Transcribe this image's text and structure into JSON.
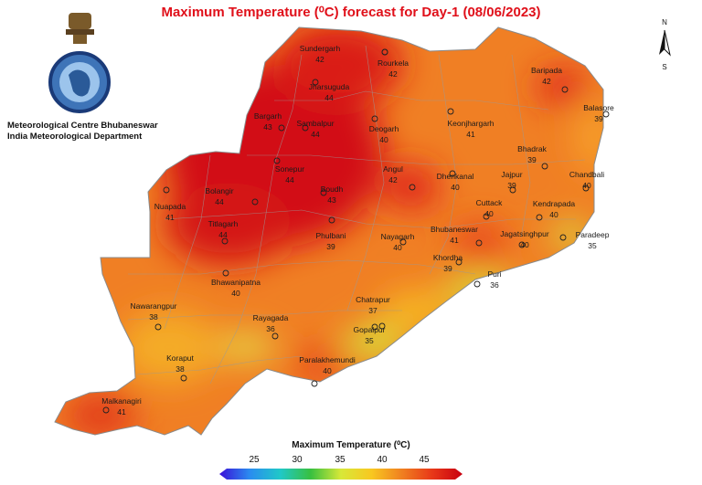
{
  "title": "Maximum Temperature (⁰C) forecast for Day-1 (08/06/2023)",
  "organization": {
    "line1": "Meteorological Centre Bhubaneswar",
    "line2": "India Meteorological Department",
    "emblem": "imd-emblem-icon"
  },
  "compass": {
    "north": "N",
    "south": "S"
  },
  "legend": {
    "title": "Maximum Temperature (⁰C)",
    "ticks": [
      "25",
      "30",
      "35",
      "40",
      "45"
    ],
    "colors": [
      "#3a10d8",
      "#2a8cf0",
      "#20c8c8",
      "#38c040",
      "#d8e838",
      "#f8c820",
      "#f08020",
      "#e83818",
      "#c80010"
    ]
  },
  "stations": [
    {
      "name": "Sundergarh",
      "temp": "42"
    },
    {
      "name": "Rourkela",
      "temp": "42"
    },
    {
      "name": "Jharsuguda",
      "temp": "44"
    },
    {
      "name": "Baripada",
      "temp": "42"
    },
    {
      "name": "Balasore",
      "temp": "39"
    },
    {
      "name": "Bargarh",
      "temp": "43"
    },
    {
      "name": "Sambalpur",
      "temp": "44"
    },
    {
      "name": "Deogarh",
      "temp": "40"
    },
    {
      "name": "Keonjhargarh",
      "temp": "41"
    },
    {
      "name": "Bhadrak",
      "temp": "39"
    },
    {
      "name": "Chandbali",
      "temp": "40"
    },
    {
      "name": "Sonepur",
      "temp": "44"
    },
    {
      "name": "Angul",
      "temp": "42"
    },
    {
      "name": "Dhenkanal",
      "temp": "40"
    },
    {
      "name": "Jajpur",
      "temp": "39"
    },
    {
      "name": "Bolangir",
      "temp": "44"
    },
    {
      "name": "Boudh",
      "temp": "43"
    },
    {
      "name": "Cuttack",
      "temp": "40"
    },
    {
      "name": "Kendrapada",
      "temp": "40"
    },
    {
      "name": "Nuapada",
      "temp": "41"
    },
    {
      "name": "Titlagarh",
      "temp": "44"
    },
    {
      "name": "Phulbani",
      "temp": "39"
    },
    {
      "name": "Nayagarh",
      "temp": "40"
    },
    {
      "name": "Bhubaneswar",
      "temp": "41"
    },
    {
      "name": "Jagatsinghpur",
      "temp": "40"
    },
    {
      "name": "Paradeep",
      "temp": "35"
    },
    {
      "name": "Khordha",
      "temp": "39"
    },
    {
      "name": "Puri",
      "temp": "36"
    },
    {
      "name": "Bhawanipatna",
      "temp": "40"
    },
    {
      "name": "Nawarangpur",
      "temp": "38"
    },
    {
      "name": "Chatrapur",
      "temp": "37"
    },
    {
      "name": "Rayagada",
      "temp": "36"
    },
    {
      "name": "Gopalpur",
      "temp": "35"
    },
    {
      "name": "Koraput",
      "temp": "38"
    },
    {
      "name": "Paralakhemundi",
      "temp": "40"
    },
    {
      "name": "Malkanagiri",
      "temp": "41"
    }
  ]
}
